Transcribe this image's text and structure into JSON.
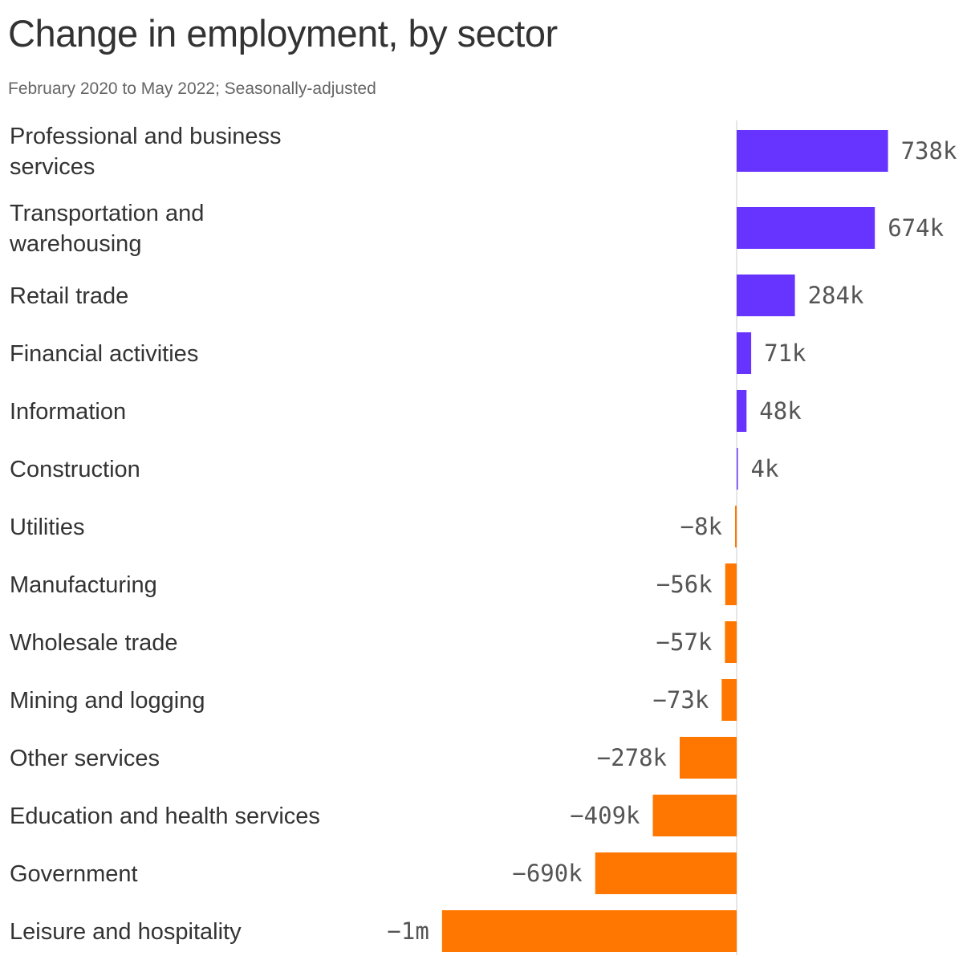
{
  "title": "Change in employment, by sector",
  "subtitle": "February 2020 to May 2022; Seasonally-adjusted",
  "colors": {
    "positive": "#6633ff",
    "negative": "#ff7700",
    "axis": "#dddddd"
  },
  "chart_data": {
    "type": "bar",
    "orientation": "horizontal",
    "categories": [
      "Professional and business services",
      "Transportation and warehousing",
      "Retail trade",
      "Financial activities",
      "Information",
      "Construction",
      "Utilities",
      "Manufacturing",
      "Wholesale trade",
      "Mining and logging",
      "Other services",
      "Education and health services",
      "Government",
      "Leisure and hospitality"
    ],
    "values": [
      738,
      674,
      284,
      71,
      48,
      4,
      -8,
      -56,
      -57,
      -73,
      -278,
      -409,
      -690,
      -1437
    ],
    "value_labels": [
      "738k",
      "674k",
      "284k",
      "71k",
      "48k",
      "4k",
      "−8k",
      "−56k",
      "−57k",
      "−73k",
      "−278k",
      "−409k",
      "−690k",
      "−1m"
    ],
    "units": "thousands of jobs",
    "grid": false,
    "legend": "none"
  }
}
